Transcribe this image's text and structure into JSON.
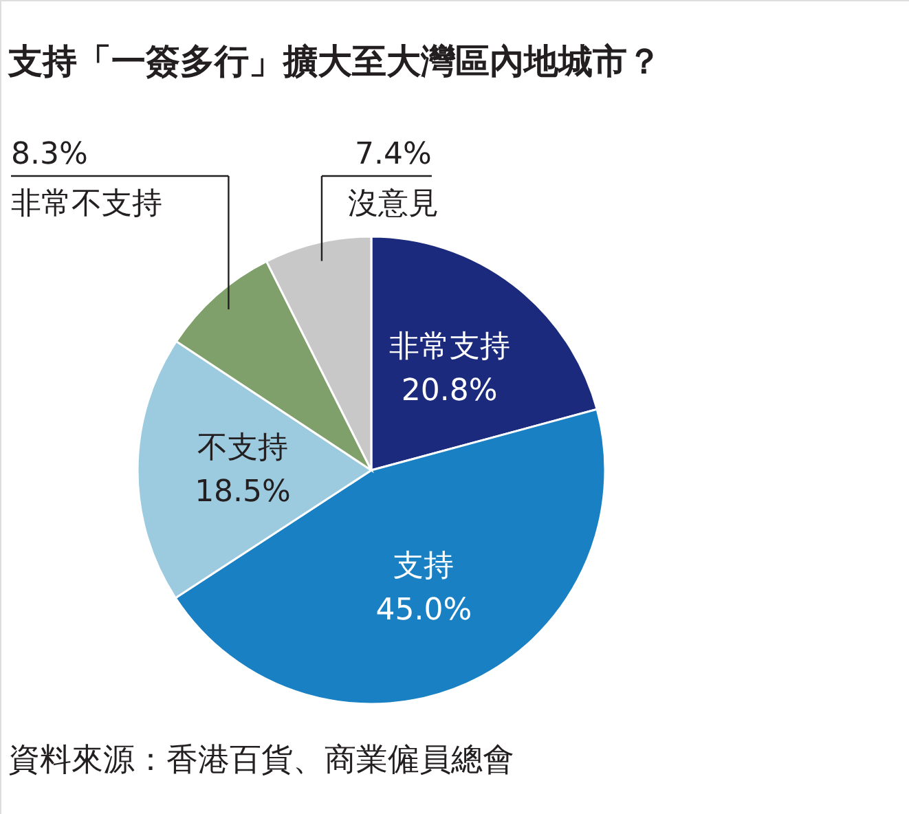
{
  "chart_data": {
    "type": "pie",
    "title": "支持「一簽多行」擴大至大灣區內地城市？",
    "categories": [
      "非常支持",
      "支持",
      "不支持",
      "非常不支持",
      "沒意見"
    ],
    "values": [
      20.8,
      45.0,
      18.5,
      8.3,
      7.4
    ],
    "colors": [
      "#1b2a7c",
      "#1a80c4",
      "#9ccbe0",
      "#7fa06a",
      "#c8c8c8"
    ],
    "value_labels": [
      "20.8%",
      "45.0%",
      "18.5%",
      "8.3%",
      "7.4%"
    ],
    "annotations": [
      "資料來源：香港百貨、商業僱員總會"
    ]
  }
}
